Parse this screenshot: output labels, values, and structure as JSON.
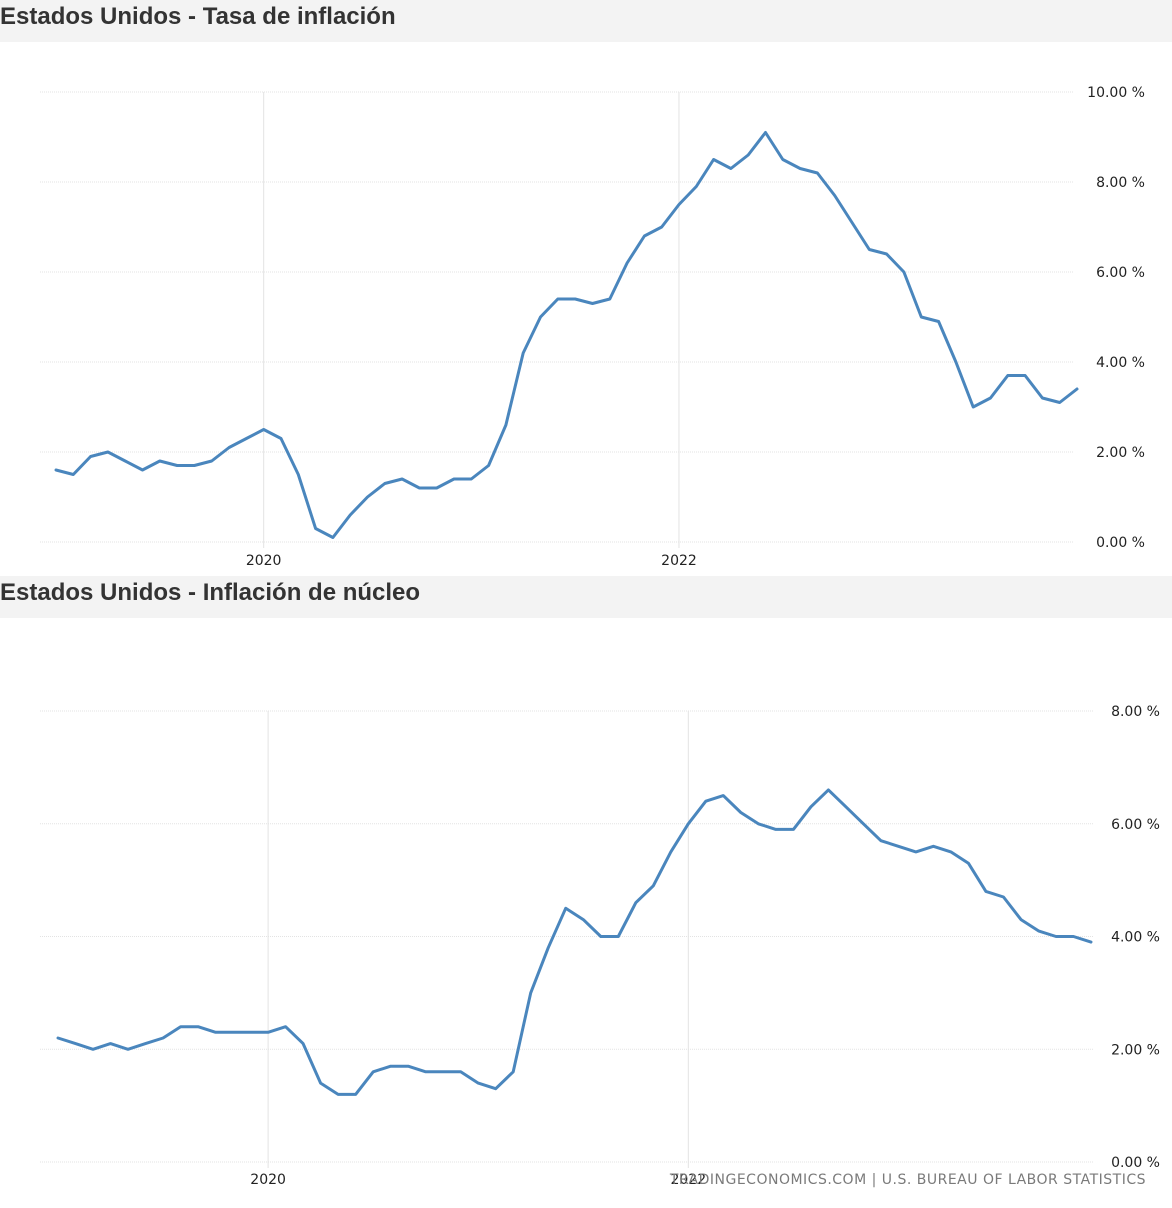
{
  "source_text": "TRADINGECONOMICS.COM | U.S. BUREAU OF LABOR STATISTICS",
  "colors": {
    "line": "#4a86bd",
    "grid": "#e3e3e3",
    "header_bg": "#f3f3f3"
  },
  "chart_data": [
    {
      "type": "line",
      "title": "Estados Unidos - Tasa de inflación",
      "xlabel": "",
      "ylabel": "",
      "x_ticks": [
        "2020",
        "2022"
      ],
      "y_ticks": [
        "0.00 %",
        "2.00 %",
        "4.00 %",
        "6.00 %",
        "8.00 %",
        "10.00 %"
      ],
      "ylim": [
        0,
        10
      ],
      "xlim": [
        "2019-01",
        "2023-12"
      ],
      "grid": true,
      "y_axis_position": "right",
      "x": [
        "2019-01",
        "2019-02",
        "2019-03",
        "2019-04",
        "2019-05",
        "2019-06",
        "2019-07",
        "2019-08",
        "2019-09",
        "2019-10",
        "2019-11",
        "2019-12",
        "2020-01",
        "2020-02",
        "2020-03",
        "2020-04",
        "2020-05",
        "2020-06",
        "2020-07",
        "2020-08",
        "2020-09",
        "2020-10",
        "2020-11",
        "2020-12",
        "2021-01",
        "2021-02",
        "2021-03",
        "2021-04",
        "2021-05",
        "2021-06",
        "2021-07",
        "2021-08",
        "2021-09",
        "2021-10",
        "2021-11",
        "2021-12",
        "2022-01",
        "2022-02",
        "2022-03",
        "2022-04",
        "2022-05",
        "2022-06",
        "2022-07",
        "2022-08",
        "2022-09",
        "2022-10",
        "2022-11",
        "2022-12",
        "2023-01",
        "2023-02",
        "2023-03",
        "2023-04",
        "2023-05",
        "2023-06",
        "2023-07",
        "2023-08",
        "2023-09",
        "2023-10",
        "2023-11",
        "2023-12"
      ],
      "values": [
        1.6,
        1.5,
        1.9,
        2.0,
        1.8,
        1.6,
        1.8,
        1.7,
        1.7,
        1.8,
        2.1,
        2.3,
        2.5,
        2.3,
        1.5,
        0.3,
        0.1,
        0.6,
        1.0,
        1.3,
        1.4,
        1.2,
        1.2,
        1.4,
        1.4,
        1.7,
        2.6,
        4.2,
        5.0,
        5.4,
        5.4,
        5.3,
        5.4,
        6.2,
        6.8,
        7.0,
        7.5,
        7.9,
        8.5,
        8.3,
        8.6,
        9.1,
        8.5,
        8.3,
        8.2,
        7.7,
        7.1,
        6.5,
        6.4,
        6.0,
        5.0,
        4.9,
        4.0,
        3.0,
        3.2,
        3.7,
        3.7,
        3.2,
        3.1,
        3.4
      ],
      "series_name": ""
    },
    {
      "type": "line",
      "title": "Estados Unidos - Inflación de núcleo",
      "xlabel": "",
      "ylabel": "",
      "x_ticks": [
        "2020",
        "2022"
      ],
      "y_ticks": [
        "0.00 %",
        "2.00 %",
        "4.00 %",
        "6.00 %",
        "8.00 %"
      ],
      "ylim": [
        0,
        8
      ],
      "xlim": [
        "2019-01",
        "2023-12"
      ],
      "grid": true,
      "y_axis_position": "right",
      "x": [
        "2019-01",
        "2019-02",
        "2019-03",
        "2019-04",
        "2019-05",
        "2019-06",
        "2019-07",
        "2019-08",
        "2019-09",
        "2019-10",
        "2019-11",
        "2019-12",
        "2020-01",
        "2020-02",
        "2020-03",
        "2020-04",
        "2020-05",
        "2020-06",
        "2020-07",
        "2020-08",
        "2020-09",
        "2020-10",
        "2020-11",
        "2020-12",
        "2021-01",
        "2021-02",
        "2021-03",
        "2021-04",
        "2021-05",
        "2021-06",
        "2021-07",
        "2021-08",
        "2021-09",
        "2021-10",
        "2021-11",
        "2021-12",
        "2022-01",
        "2022-02",
        "2022-03",
        "2022-04",
        "2022-05",
        "2022-06",
        "2022-07",
        "2022-08",
        "2022-09",
        "2022-10",
        "2022-11",
        "2022-12",
        "2023-01",
        "2023-02",
        "2023-03",
        "2023-04",
        "2023-05",
        "2023-06",
        "2023-07",
        "2023-08",
        "2023-09",
        "2023-10",
        "2023-11",
        "2023-12"
      ],
      "values": [
        2.2,
        2.1,
        2.0,
        2.1,
        2.0,
        2.1,
        2.2,
        2.4,
        2.4,
        2.3,
        2.3,
        2.3,
        2.3,
        2.4,
        2.1,
        1.4,
        1.2,
        1.2,
        1.6,
        1.7,
        1.7,
        1.6,
        1.6,
        1.6,
        1.4,
        1.3,
        1.6,
        3.0,
        3.8,
        4.5,
        4.3,
        4.0,
        4.0,
        4.6,
        4.9,
        5.5,
        6.0,
        6.4,
        6.5,
        6.2,
        6.0,
        5.9,
        5.9,
        6.3,
        6.6,
        6.3,
        6.0,
        5.7,
        5.6,
        5.5,
        5.6,
        5.5,
        5.3,
        4.8,
        4.7,
        4.3,
        4.1,
        4.0,
        4.0,
        3.9
      ],
      "series_name": ""
    }
  ]
}
